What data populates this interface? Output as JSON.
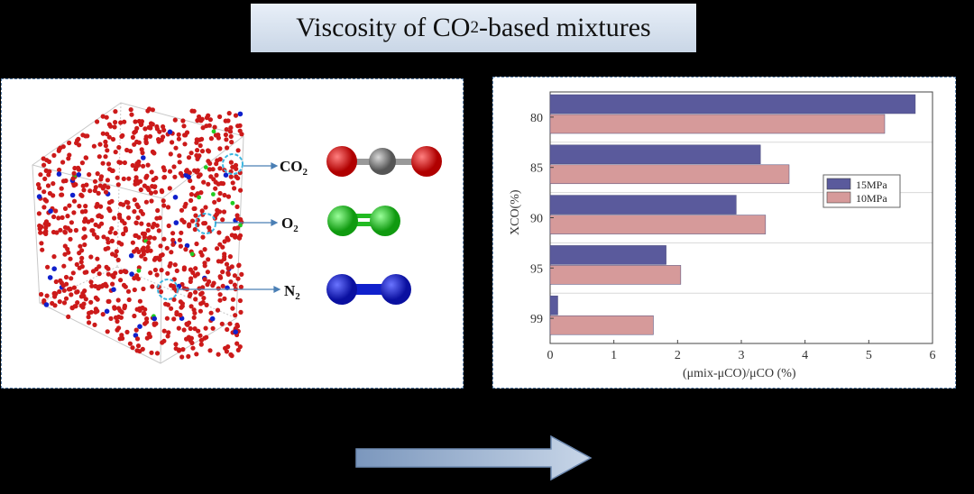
{
  "title": {
    "prefix": "Viscosity of CO",
    "sub": "2",
    "suffix": "-based mixtures"
  },
  "molecules": [
    {
      "name": "CO",
      "sub": "2"
    },
    {
      "name": "O",
      "sub": "2"
    },
    {
      "name": "N",
      "sub": "2"
    }
  ],
  "colors": {
    "co2_red": "#cc1a1a",
    "carbon_gray": "#777777",
    "oxygen_green": "#22cc22",
    "nitrogen_blue": "#1020cc",
    "series_15": "#5a5a9c",
    "series_10": "#d69a9a",
    "arrow": "#8fa9c9"
  },
  "chart_data": {
    "type": "bar",
    "orientation": "horizontal",
    "categories": [
      "80",
      "85",
      "90",
      "95",
      "99"
    ],
    "series": [
      {
        "name": "15MPa",
        "values": [
          5.73,
          3.3,
          2.92,
          1.82,
          0.12
        ]
      },
      {
        "name": "10MPa",
        "values": [
          5.25,
          3.75,
          3.38,
          2.05,
          1.62
        ]
      }
    ],
    "xlabel": "(μmix-μCO)/μCO (%)",
    "ylabel": "XCO(%)",
    "xlim": [
      0,
      6
    ],
    "xticks": [
      "0",
      "1",
      "2",
      "3",
      "4",
      "5",
      "6"
    ],
    "legend_position": "right"
  }
}
